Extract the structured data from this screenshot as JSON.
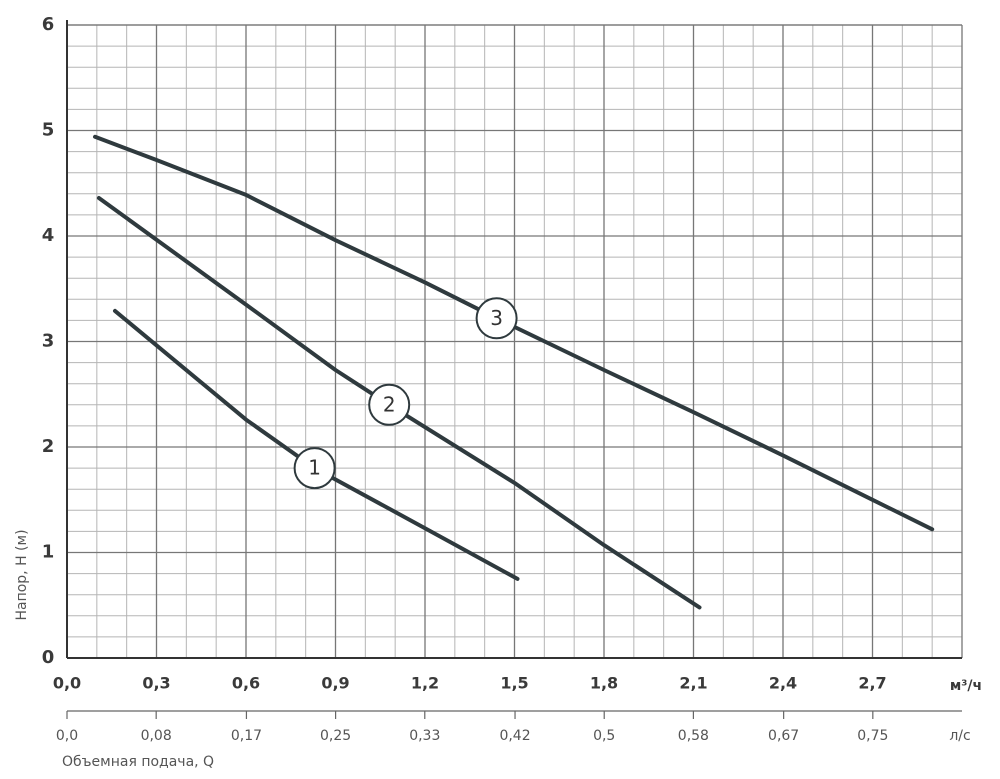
{
  "chart_data": {
    "type": "line",
    "ylabel": "Напор, Н (м)",
    "xlabel": "Объемная подача, Q",
    "xunit": "м³/ч",
    "x2unit": "л/с",
    "xlim": [
      0,
      3
    ],
    "ylim": [
      0,
      6
    ],
    "x2lim": [
      0,
      0.833
    ],
    "grid": true,
    "yticks": [
      0,
      1,
      2,
      3,
      4,
      5,
      6
    ],
    "xticks": [
      {
        "value": 0,
        "label": "0,0"
      },
      {
        "value": 0.3,
        "label": "0,3"
      },
      {
        "value": 0.6,
        "label": "0,6"
      },
      {
        "value": 0.9,
        "label": "0,9"
      },
      {
        "value": 1.2,
        "label": "1,2"
      },
      {
        "value": 1.5,
        "label": "1,5"
      },
      {
        "value": 1.8,
        "label": "1,8"
      },
      {
        "value": 2.1,
        "label": "2,1"
      },
      {
        "value": 2.4,
        "label": "2,4"
      },
      {
        "value": 2.7,
        "label": "2,7"
      }
    ],
    "x2ticks": [
      {
        "value": 0,
        "label": "0,0"
      },
      {
        "value": 0.083,
        "label": "0,08"
      },
      {
        "value": 0.167,
        "label": "0,17"
      },
      {
        "value": 0.25,
        "label": "0,25"
      },
      {
        "value": 0.333,
        "label": "0,33"
      },
      {
        "value": 0.417,
        "label": "0,42"
      },
      {
        "value": 0.5,
        "label": "0,5"
      },
      {
        "value": 0.583,
        "label": "0,58"
      },
      {
        "value": 0.667,
        "label": "0,67"
      },
      {
        "value": 0.75,
        "label": "0,75"
      }
    ],
    "series": [
      {
        "name": "1",
        "color": "#2f3a3e",
        "x": [
          0.161,
          0.6,
          0.83,
          1.2,
          1.51
        ],
        "values": [
          3.29,
          2.26,
          1.8,
          1.23,
          0.75
        ]
      },
      {
        "name": "2",
        "color": "#2f3a3e",
        "x": [
          0.107,
          0.6,
          0.9,
          1.08,
          1.5,
          1.8,
          2.12
        ],
        "values": [
          4.36,
          3.35,
          2.73,
          2.4,
          1.66,
          1.07,
          0.48
        ]
      },
      {
        "name": "3",
        "color": "#2f3a3e",
        "x": [
          0.094,
          0.3,
          0.6,
          0.9,
          1.2,
          1.44,
          1.8,
          2.1,
          2.4,
          2.7,
          2.9
        ],
        "values": [
          4.94,
          4.72,
          4.39,
          3.96,
          3.56,
          3.22,
          2.73,
          2.33,
          1.92,
          1.5,
          1.22
        ]
      }
    ]
  }
}
